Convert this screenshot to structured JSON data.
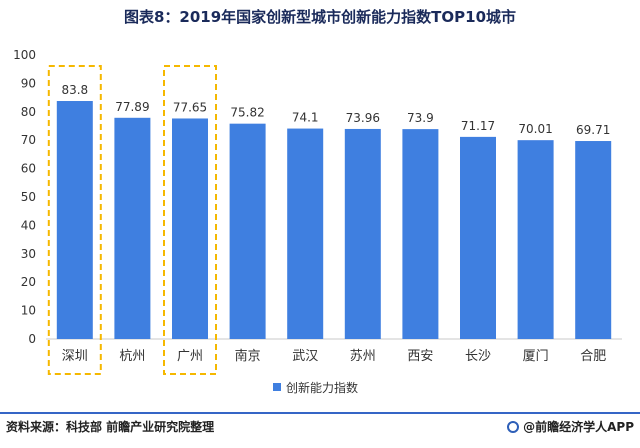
{
  "title": "图表8：2019年国家创新型城市创新能力指数TOP10城市",
  "chart_data": {
    "type": "bar",
    "categories": [
      "深圳",
      "杭州",
      "广州",
      "南京",
      "武汉",
      "苏州",
      "西安",
      "长沙",
      "厦门",
      "合肥"
    ],
    "series": [
      {
        "name": "创新能力指数",
        "values": [
          83.8,
          77.89,
          77.65,
          75.82,
          74.1,
          73.96,
          73.9,
          71.17,
          70.01,
          69.71
        ]
      }
    ],
    "value_labels": [
      "83.8",
      "77.89",
      "77.65",
      "75.82",
      "74.1",
      "73.96",
      "73.9",
      "71.17",
      "70.01",
      "69.71"
    ],
    "ylim": [
      0,
      100
    ],
    "yticks": [
      0,
      10,
      20,
      30,
      40,
      50,
      60,
      70,
      80,
      90,
      100
    ],
    "highlighted_categories": [
      "深圳",
      "广州"
    ],
    "bar_color": "#3f7fe0",
    "highlight_color": "#f5b800",
    "legend_position": "bottom"
  },
  "legend": {
    "label": "创新能力指数"
  },
  "footer": {
    "source": "资料来源：科技部 前瞻产业研究院整理",
    "brand": "@前瞻经济学人APP"
  }
}
